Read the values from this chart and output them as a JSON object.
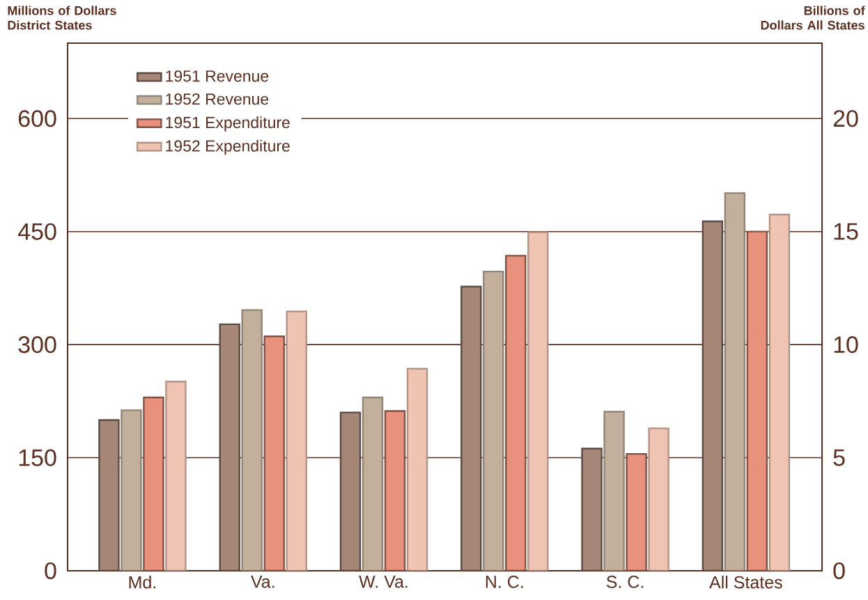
{
  "chart_data": {
    "type": "bar",
    "ylabel": "Millions of Dollars District States",
    "y2label": "Billions of Dollars All States",
    "categories": [
      "Md.",
      "Va.",
      "W. Va.",
      "N. C.",
      "S. C.",
      "All States"
    ],
    "series": [
      {
        "name": "1951 Revenue",
        "color": "#a58677",
        "values": [
          200,
          327,
          210,
          377,
          162,
          null
        ]
      },
      {
        "name": "1952 Revenue",
        "color": "#c2b09c",
        "values": [
          213,
          346,
          230,
          397,
          211,
          null
        ]
      },
      {
        "name": "1951 Expenditure",
        "color": "#e8917c",
        "values": [
          230,
          311,
          212,
          418,
          155,
          null
        ]
      },
      {
        "name": "1952 Expenditure",
        "color": "#f0c4b2",
        "values": [
          251,
          344,
          268,
          449,
          189,
          null
        ]
      },
      {
        "color": "#a58677",
        "axis": "y2",
        "values": [
          null,
          null,
          null,
          null,
          null,
          15.45
        ]
      },
      {
        "color": "#c2b09c",
        "axis": "y2",
        "values": [
          null,
          null,
          null,
          null,
          null,
          16.7
        ]
      },
      {
        "color": "#e8917c",
        "axis": "y2",
        "values": [
          null,
          null,
          null,
          null,
          null,
          15.0
        ]
      },
      {
        "color": "#f0c4b2",
        "axis": "y2",
        "values": [
          null,
          null,
          null,
          null,
          null,
          15.75
        ]
      }
    ],
    "ylim": [
      0,
      700
    ],
    "yticks": [
      0,
      150,
      300,
      450,
      600
    ],
    "y2lim": [
      0,
      23.33
    ],
    "y2ticks": [
      0,
      5,
      10,
      15,
      20
    ],
    "grid": "y",
    "legend": "top left"
  }
}
